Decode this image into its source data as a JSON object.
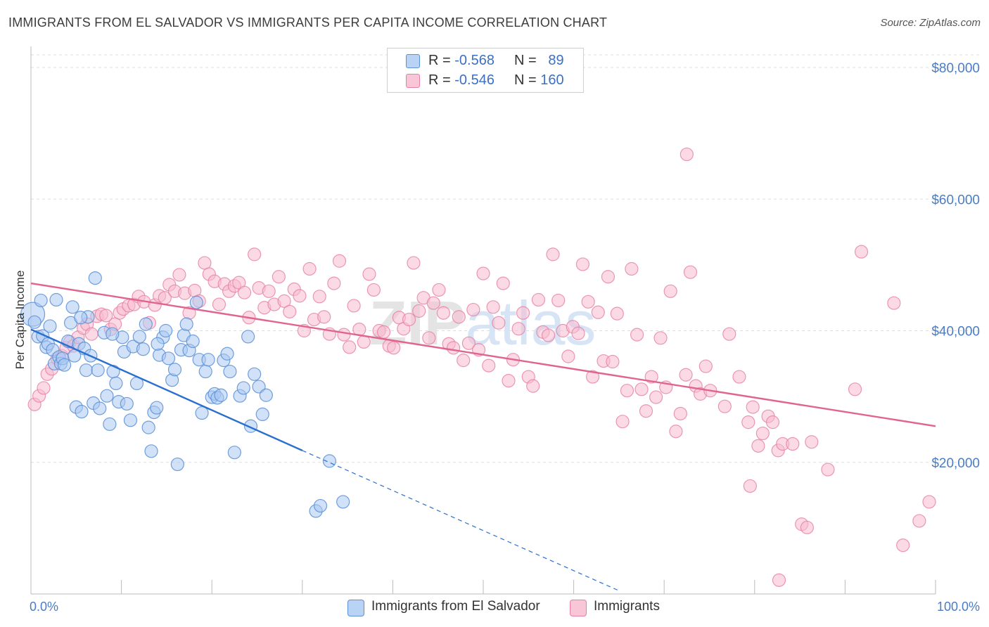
{
  "title": "IMMIGRANTS FROM EL SALVADOR VS IMMIGRANTS PER CAPITA INCOME CORRELATION CHART",
  "source": "Source: ZipAtlas.com",
  "watermark": "ZIPatlas",
  "legend": {
    "series1": {
      "r_label": "R =",
      "r_value": "-0.568",
      "n_label": "N =",
      "n_value": "89"
    },
    "series2": {
      "r_label": "R =",
      "r_value": "-0.546",
      "n_label": "N =",
      "n_value": "160"
    }
  },
  "colors": {
    "blue_fill": "#a9c8f2",
    "blue_stroke": "#5b8fd6",
    "blue_line": "#2a6fd0",
    "pink_fill": "#f7bcd0",
    "pink_stroke": "#e67fa3",
    "pink_line": "#e0648f",
    "grid": "#dddddd",
    "axis_text": "#4a7cc6"
  },
  "chart_data": {
    "type": "scatter",
    "title": "IMMIGRANTS FROM EL SALVADOR VS IMMIGRANTS PER CAPITA INCOME CORRELATION CHART",
    "xlabel": "",
    "ylabel": "Per Capita Income",
    "xlim": [
      0,
      100
    ],
    "ylim": [
      0,
      80000
    ],
    "x_tick_labels": [
      "0.0%",
      "100.0%"
    ],
    "y_ticks": [
      20000,
      40000,
      60000,
      80000
    ],
    "y_tick_labels": [
      "$20,000",
      "$40,000",
      "$60,000",
      "$80,000"
    ],
    "grid": true,
    "legend_position": "top-center",
    "series": [
      {
        "name": "Immigrants from El Salvador",
        "color": "#5b8fd6",
        "trendline": {
          "x0": 0,
          "y0": 40200,
          "x1": 30,
          "y1": 21800,
          "dashed_to_x": 65,
          "dashed_to_y": 500
        },
        "points": [
          [
            0.2,
            42.5
          ],
          [
            0.4,
            41.3
          ],
          [
            0.8,
            39.1
          ],
          [
            1.1,
            44.6
          ],
          [
            1.3,
            39.2
          ],
          [
            1.7,
            37.5
          ],
          [
            1.9,
            38.0
          ],
          [
            2.1,
            40.7
          ],
          [
            2.4,
            37.1
          ],
          [
            2.6,
            35.0
          ],
          [
            2.8,
            44.7
          ],
          [
            3.1,
            36.0
          ],
          [
            3.3,
            35.0
          ],
          [
            3.5,
            35.8
          ],
          [
            3.7,
            34.8
          ],
          [
            4.1,
            38.4
          ],
          [
            4.4,
            41.2
          ],
          [
            4.6,
            43.6
          ],
          [
            4.8,
            36.2
          ],
          [
            5.0,
            28.4
          ],
          [
            5.3,
            38.0
          ],
          [
            5.6,
            27.7
          ],
          [
            5.9,
            37.3
          ],
          [
            6.1,
            34.0
          ],
          [
            6.3,
            42.1
          ],
          [
            6.6,
            36.2
          ],
          [
            6.9,
            29.0
          ],
          [
            7.1,
            48.0
          ],
          [
            7.4,
            34.0
          ],
          [
            7.6,
            28.2
          ],
          [
            8.1,
            39.7
          ],
          [
            8.4,
            30.1
          ],
          [
            8.7,
            25.8
          ],
          [
            9.1,
            33.8
          ],
          [
            9.4,
            32.0
          ],
          [
            9.7,
            29.2
          ],
          [
            10.1,
            39.0
          ],
          [
            10.3,
            36.8
          ],
          [
            10.6,
            28.9
          ],
          [
            11.0,
            26.4
          ],
          [
            11.3,
            37.6
          ],
          [
            11.7,
            32.0
          ],
          [
            12.0,
            39.1
          ],
          [
            12.4,
            37.2
          ],
          [
            12.7,
            41.0
          ],
          [
            13.0,
            25.3
          ],
          [
            13.3,
            21.7
          ],
          [
            13.6,
            27.6
          ],
          [
            13.9,
            28.3
          ],
          [
            14.2,
            36.3
          ],
          [
            14.6,
            39.0
          ],
          [
            14.9,
            40.0
          ],
          [
            15.2,
            35.8
          ],
          [
            15.6,
            32.5
          ],
          [
            15.9,
            34.1
          ],
          [
            16.2,
            19.7
          ],
          [
            16.6,
            37.1
          ],
          [
            16.9,
            39.3
          ],
          [
            17.2,
            41.0
          ],
          [
            17.5,
            37.0
          ],
          [
            17.9,
            38.4
          ],
          [
            18.3,
            44.3
          ],
          [
            18.6,
            35.6
          ],
          [
            18.9,
            27.5
          ],
          [
            19.3,
            33.8
          ],
          [
            19.6,
            35.6
          ],
          [
            20.0,
            29.9
          ],
          [
            20.3,
            30.4
          ],
          [
            20.6,
            29.8
          ],
          [
            21.0,
            30.2
          ],
          [
            21.3,
            35.5
          ],
          [
            21.7,
            36.5
          ],
          [
            22.0,
            33.8
          ],
          [
            22.5,
            21.5
          ],
          [
            23.1,
            30.1
          ],
          [
            23.5,
            31.3
          ],
          [
            24.0,
            39.1
          ],
          [
            24.3,
            25.5
          ],
          [
            24.7,
            33.4
          ],
          [
            25.2,
            31.5
          ],
          [
            25.6,
            27.3
          ],
          [
            26.0,
            30.2
          ],
          [
            31.5,
            12.6
          ],
          [
            32.0,
            13.4
          ],
          [
            33.0,
            20.2
          ],
          [
            34.5,
            14.0
          ],
          [
            5.5,
            42.0
          ],
          [
            9.0,
            39.5
          ],
          [
            14.0,
            38.0
          ]
        ]
      },
      {
        "name": "Immigrants",
        "color": "#e67fa3",
        "trendline": {
          "x0": 0,
          "y0": 47200,
          "x1": 100,
          "y1": 25500
        },
        "points": [
          [
            0.4,
            28.8
          ],
          [
            0.9,
            30.1
          ],
          [
            1.4,
            31.3
          ],
          [
            1.8,
            33.4
          ],
          [
            2.3,
            34.2
          ],
          [
            2.9,
            35.8
          ],
          [
            3.4,
            36.2
          ],
          [
            3.9,
            37.4
          ],
          [
            4.3,
            38.3
          ],
          [
            4.7,
            37.7
          ],
          [
            5.2,
            39.0
          ],
          [
            5.8,
            40.4
          ],
          [
            6.2,
            41.0
          ],
          [
            6.7,
            39.5
          ],
          [
            7.3,
            42.2
          ],
          [
            7.8,
            42.5
          ],
          [
            8.3,
            42.3
          ],
          [
            8.8,
            40.2
          ],
          [
            9.3,
            41.0
          ],
          [
            9.8,
            42.7
          ],
          [
            10.2,
            43.3
          ],
          [
            10.8,
            43.8
          ],
          [
            11.4,
            44.0
          ],
          [
            11.9,
            45.2
          ],
          [
            12.5,
            44.4
          ],
          [
            13.1,
            41.2
          ],
          [
            13.7,
            43.9
          ],
          [
            14.2,
            45.3
          ],
          [
            14.8,
            45.0
          ],
          [
            15.3,
            47.0
          ],
          [
            15.9,
            46.0
          ],
          [
            16.4,
            48.5
          ],
          [
            17.0,
            45.7
          ],
          [
            17.5,
            42.7
          ],
          [
            18.1,
            46.1
          ],
          [
            18.6,
            44.5
          ],
          [
            19.2,
            50.3
          ],
          [
            19.7,
            48.6
          ],
          [
            20.3,
            47.5
          ],
          [
            20.8,
            44.0
          ],
          [
            21.4,
            47.1
          ],
          [
            21.9,
            46.0
          ],
          [
            22.5,
            46.8
          ],
          [
            23.0,
            47.3
          ],
          [
            23.6,
            45.8
          ],
          [
            24.1,
            42.0
          ],
          [
            24.7,
            51.6
          ],
          [
            25.2,
            46.5
          ],
          [
            25.8,
            43.5
          ],
          [
            26.3,
            46.0
          ],
          [
            26.9,
            44.0
          ],
          [
            27.4,
            48.2
          ],
          [
            28.0,
            44.5
          ],
          [
            28.6,
            42.9
          ],
          [
            29.1,
            46.3
          ],
          [
            29.7,
            45.3
          ],
          [
            30.2,
            40.0
          ],
          [
            30.8,
            49.4
          ],
          [
            31.3,
            41.7
          ],
          [
            31.9,
            45.2
          ],
          [
            32.4,
            42.1
          ],
          [
            33.0,
            39.5
          ],
          [
            33.5,
            47.2
          ],
          [
            34.1,
            50.6
          ],
          [
            34.6,
            39.4
          ],
          [
            35.2,
            37.5
          ],
          [
            35.7,
            43.8
          ],
          [
            36.3,
            40.2
          ],
          [
            36.8,
            38.3
          ],
          [
            37.4,
            48.6
          ],
          [
            37.9,
            46.2
          ],
          [
            38.5,
            40.0
          ],
          [
            39.0,
            39.8
          ],
          [
            39.6,
            37.7
          ],
          [
            40.1,
            37.4
          ],
          [
            40.7,
            42.0
          ],
          [
            41.2,
            40.3
          ],
          [
            41.8,
            41.7
          ],
          [
            42.3,
            50.3
          ],
          [
            42.9,
            43.0
          ],
          [
            43.4,
            45.0
          ],
          [
            44.0,
            38.9
          ],
          [
            44.5,
            44.2
          ],
          [
            45.1,
            46.2
          ],
          [
            45.6,
            42.7
          ],
          [
            46.2,
            38.0
          ],
          [
            46.7,
            37.4
          ],
          [
            47.3,
            42.1
          ],
          [
            47.8,
            35.5
          ],
          [
            48.4,
            38.1
          ],
          [
            48.9,
            43.2
          ],
          [
            49.5,
            37.1
          ],
          [
            50.0,
            48.7
          ],
          [
            50.6,
            34.7
          ],
          [
            51.1,
            43.6
          ],
          [
            51.7,
            41.2
          ],
          [
            52.2,
            47.2
          ],
          [
            52.8,
            32.4
          ],
          [
            53.3,
            35.6
          ],
          [
            53.9,
            40.3
          ],
          [
            54.4,
            42.7
          ],
          [
            55.0,
            33.0
          ],
          [
            55.5,
            31.6
          ],
          [
            56.1,
            44.7
          ],
          [
            56.6,
            39.8
          ],
          [
            57.2,
            39.3
          ],
          [
            57.7,
            51.6
          ],
          [
            58.3,
            44.6
          ],
          [
            58.8,
            40.0
          ],
          [
            59.4,
            36.1
          ],
          [
            59.9,
            40.6
          ],
          [
            60.5,
            39.6
          ],
          [
            61.0,
            50.1
          ],
          [
            61.6,
            44.4
          ],
          [
            62.1,
            33.0
          ],
          [
            62.7,
            42.8
          ],
          [
            63.3,
            35.4
          ],
          [
            63.8,
            48.2
          ],
          [
            64.3,
            35.3
          ],
          [
            64.8,
            42.6
          ],
          [
            65.4,
            26.2
          ],
          [
            65.9,
            30.9
          ],
          [
            66.4,
            49.4
          ],
          [
            67.0,
            39.4
          ],
          [
            67.5,
            31.1
          ],
          [
            68.0,
            27.8
          ],
          [
            68.6,
            33.0
          ],
          [
            69.1,
            29.9
          ],
          [
            69.6,
            38.9
          ],
          [
            70.2,
            31.4
          ],
          [
            70.7,
            46.0
          ],
          [
            71.3,
            24.7
          ],
          [
            71.8,
            27.4
          ],
          [
            72.4,
            33.3
          ],
          [
            72.9,
            48.9
          ],
          [
            73.5,
            31.6
          ],
          [
            74.0,
            30.4
          ],
          [
            74.6,
            34.6
          ],
          [
            75.1,
            30.9
          ],
          [
            76.7,
            28.5
          ],
          [
            77.2,
            39.5
          ],
          [
            78.3,
            33.0
          ],
          [
            79.3,
            26.1
          ],
          [
            79.8,
            28.4
          ],
          [
            80.4,
            22.5
          ],
          [
            80.9,
            24.4
          ],
          [
            81.5,
            27.0
          ],
          [
            82.0,
            26.1
          ],
          [
            82.6,
            21.8
          ],
          [
            83.1,
            22.8
          ],
          [
            84.2,
            22.8
          ],
          [
            85.2,
            10.6
          ],
          [
            85.8,
            10.1
          ],
          [
            86.3,
            23.1
          ],
          [
            88.1,
            18.9
          ],
          [
            91.1,
            31.1
          ],
          [
            91.8,
            52.0
          ],
          [
            95.4,
            44.2
          ],
          [
            96.4,
            7.4
          ],
          [
            98.2,
            11.1
          ],
          [
            99.3,
            14.0
          ],
          [
            72.5,
            66.8
          ],
          [
            79.5,
            16.4
          ],
          [
            82.7,
            2.1
          ]
        ]
      }
    ]
  },
  "bottom_legend": {
    "item1": "Immigrants from El Salvador",
    "item2": "Immigrants"
  }
}
